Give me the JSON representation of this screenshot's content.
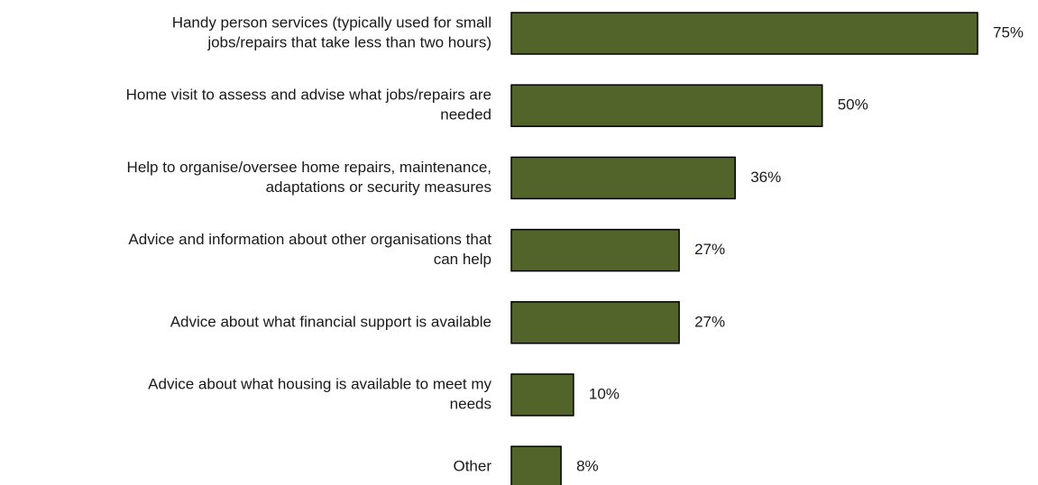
{
  "chart_data": {
    "type": "bar",
    "orientation": "horizontal",
    "title": "",
    "xlabel": "",
    "ylabel": "",
    "categories": [
      [
        "Handy person services (typically used for small",
        "jobs/repairs that take less than two hours)"
      ],
      [
        "Home visit to assess and advise what jobs/repairs are",
        "needed"
      ],
      [
        "Help to organise/oversee home repairs, maintenance,",
        "adaptations or security measures"
      ],
      [
        "Advice and information about other organisations that",
        "can help"
      ],
      [
        "Advice about what financial support is available"
      ],
      [
        "Advice about what housing is available to meet my",
        "needs"
      ],
      [
        "Other"
      ]
    ],
    "values": [
      75,
      50,
      36,
      27,
      27,
      10,
      8
    ],
    "value_labels": [
      "75%",
      "50%",
      "36%",
      "27%",
      "27%",
      "10%",
      "8%"
    ],
    "unit": "%",
    "xlim": [
      0,
      75
    ],
    "grid": false,
    "legend": "none",
    "bar_color": "#526429",
    "bar_edge_color": "#000000"
  }
}
